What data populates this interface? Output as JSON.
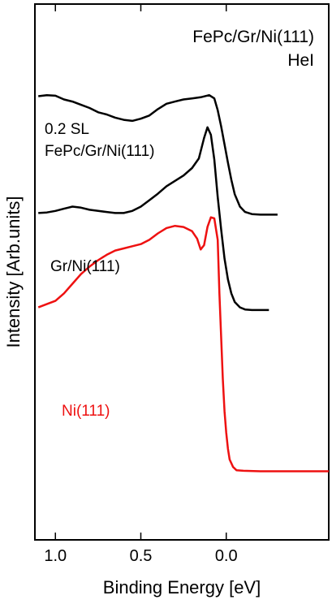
{
  "chart_data": {
    "type": "line",
    "title": "FePc/Gr/Ni(111)",
    "subtitle": "HeI",
    "xlabel": "Binding Energy [eV]",
    "ylabel": "Intensity [Arb.units]",
    "x_reversed": true,
    "xlim": [
      1.12,
      -0.6
    ],
    "ylim": [
      0,
      10
    ],
    "grid": false,
    "xticks": [
      {
        "value": 1.0,
        "label": "1.0"
      },
      {
        "value": 0.5,
        "label": "0.5"
      },
      {
        "value": 0.0,
        "label": "0.0"
      }
    ],
    "series": [
      {
        "name": "0.2 SL FePc/Gr/Ni(111)",
        "label_lines": [
          "0.2 SL",
          "FePc/Gr/Ni(111)"
        ],
        "color": "#000000",
        "x": [
          1.1,
          1.05,
          1.0,
          0.95,
          0.9,
          0.85,
          0.8,
          0.75,
          0.7,
          0.65,
          0.6,
          0.55,
          0.5,
          0.45,
          0.4,
          0.35,
          0.3,
          0.25,
          0.2,
          0.15,
          0.1,
          0.07,
          0.05,
          0.03,
          0.01,
          -0.01,
          -0.03,
          -0.05,
          -0.08,
          -0.11,
          -0.15,
          -0.2,
          -0.25,
          -0.3
        ],
        "y": [
          8.28,
          8.3,
          8.29,
          8.22,
          8.18,
          8.12,
          8.06,
          7.98,
          7.94,
          7.88,
          7.84,
          7.82,
          7.86,
          7.92,
          8.04,
          8.14,
          8.18,
          8.22,
          8.24,
          8.26,
          8.3,
          8.24,
          8.02,
          7.72,
          7.38,
          7.04,
          6.72,
          6.45,
          6.22,
          6.12,
          6.08,
          6.07,
          6.07,
          6.07
        ]
      },
      {
        "name": "Gr/Ni(111)",
        "color": "#000000",
        "x": [
          1.1,
          1.05,
          1.0,
          0.95,
          0.9,
          0.85,
          0.8,
          0.75,
          0.7,
          0.65,
          0.6,
          0.55,
          0.5,
          0.45,
          0.4,
          0.35,
          0.3,
          0.25,
          0.2,
          0.16,
          0.13,
          0.11,
          0.09,
          0.07,
          0.05,
          0.03,
          0.01,
          -0.01,
          -0.03,
          -0.05,
          -0.08,
          -0.11,
          -0.15,
          -0.2,
          -0.25
        ],
        "y": [
          6.1,
          6.11,
          6.14,
          6.18,
          6.22,
          6.2,
          6.16,
          6.14,
          6.12,
          6.1,
          6.1,
          6.14,
          6.22,
          6.34,
          6.46,
          6.6,
          6.7,
          6.8,
          6.94,
          7.12,
          7.5,
          7.7,
          7.56,
          7.1,
          6.4,
          5.8,
          5.25,
          4.86,
          4.6,
          4.44,
          4.34,
          4.3,
          4.29,
          4.29,
          4.29
        ]
      },
      {
        "name": "Ni(111)",
        "color": "#ee1111",
        "x": [
          1.1,
          1.05,
          1.0,
          0.95,
          0.9,
          0.85,
          0.8,
          0.75,
          0.7,
          0.65,
          0.6,
          0.55,
          0.5,
          0.45,
          0.4,
          0.35,
          0.3,
          0.25,
          0.2,
          0.17,
          0.15,
          0.13,
          0.11,
          0.09,
          0.07,
          0.05,
          0.04,
          0.03,
          0.02,
          0.01,
          0.0,
          -0.01,
          -0.02,
          -0.04,
          -0.06,
          -0.1,
          -0.2,
          -0.3,
          -0.45,
          -0.6
        ],
        "y": [
          4.34,
          4.4,
          4.46,
          4.6,
          4.78,
          4.96,
          5.1,
          5.22,
          5.32,
          5.4,
          5.44,
          5.48,
          5.52,
          5.6,
          5.72,
          5.82,
          5.86,
          5.84,
          5.76,
          5.62,
          5.42,
          5.5,
          5.84,
          6.02,
          6.0,
          5.6,
          4.6,
          3.8,
          3.0,
          2.4,
          2.0,
          1.7,
          1.5,
          1.36,
          1.3,
          1.29,
          1.28,
          1.28,
          1.28,
          1.28
        ]
      }
    ]
  }
}
